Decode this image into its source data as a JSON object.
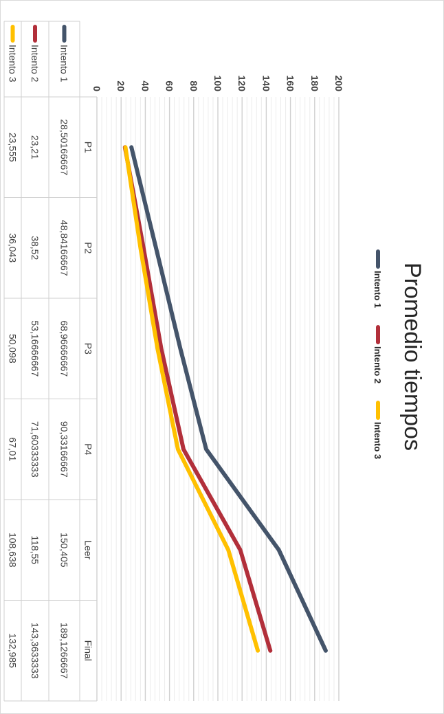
{
  "chart_data": {
    "type": "line",
    "title": "Promedio tiempos",
    "categories": [
      "P1",
      "P2",
      "P3",
      "P4",
      "Leer",
      "Final"
    ],
    "series": [
      {
        "name": "Intento 1",
        "color": "#44546a",
        "values": [
          28.50166667,
          48.84166667,
          68.96666667,
          90.33166667,
          150.405,
          189.1266667
        ],
        "labels": [
          "28,50166667",
          "48,84166667",
          "68,96666667",
          "90,33166667",
          "150,405",
          "189,1266667"
        ]
      },
      {
        "name": "Intento 2",
        "color": "#b22f3a",
        "values": [
          23.21,
          38.52,
          53.16666667,
          71.60333333,
          118.55,
          143.3633333
        ],
        "labels": [
          "23,21",
          "38,52",
          "53,16666667",
          "71,60333333",
          "118,55",
          "143,3633333"
        ]
      },
      {
        "name": "Intento 3",
        "color": "#ffc000",
        "values": [
          23.555,
          36.043,
          50.098,
          67.01,
          108.638,
          132.985
        ],
        "labels": [
          "23,555",
          "36,043",
          "50,098",
          "67,01",
          "108,638",
          "132,985"
        ]
      }
    ],
    "y_ticks": [
      "0",
      "20",
      "40",
      "60",
      "80",
      "100",
      "120",
      "140",
      "160",
      "180",
      "200"
    ],
    "ylim": [
      0,
      200
    ],
    "major_step": 20,
    "minor_step": 4,
    "grid": true,
    "legend": "top",
    "data_table": true,
    "orientation": "rotated 90° clockwise"
  }
}
